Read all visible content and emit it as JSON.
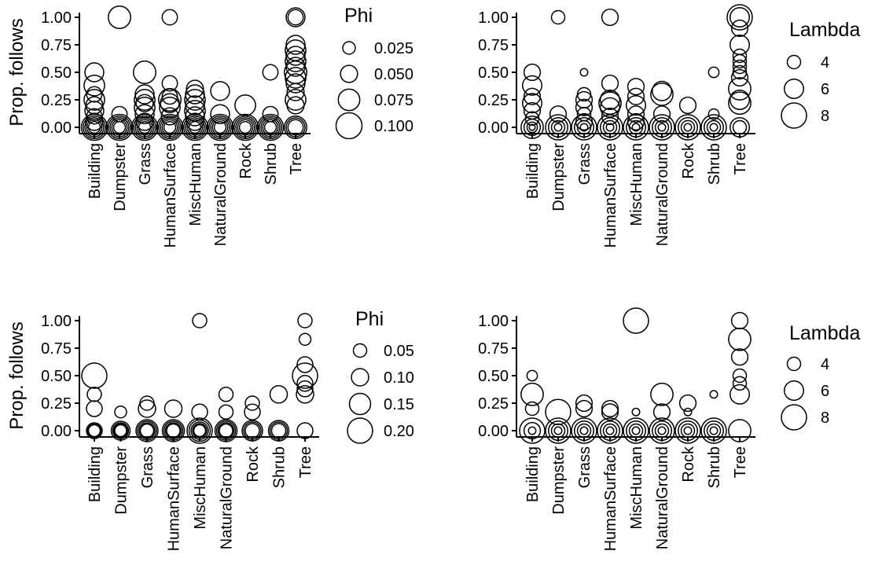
{
  "chart_data": [
    {
      "type": "scatter",
      "ylabel": "Prop. follows",
      "categories": [
        "Building",
        "Dumpster",
        "Grass",
        "HumanSurface",
        "MiscHuman",
        "NaturalGround",
        "Rock",
        "Shrub",
        "Tree"
      ],
      "ylim": [
        0,
        1
      ],
      "yticks": [
        "0.00",
        "0.25",
        "0.50",
        "0.75",
        "1.00"
      ],
      "legend": {
        "title": "Phi",
        "labels": [
          "0.025",
          "0.050",
          "0.075",
          "0.100"
        ],
        "values": [
          0.025,
          0.05,
          0.075,
          0.1
        ],
        "placement": "right"
      },
      "points": [
        [
          0,
          0,
          0.1
        ],
        [
          0,
          0,
          0.08
        ],
        [
          0,
          0,
          0.06
        ],
        [
          0,
          0,
          0.04
        ],
        [
          0,
          0,
          0.02
        ],
        [
          0,
          0.05,
          0.05
        ],
        [
          0,
          0.1,
          0.04
        ],
        [
          0,
          0.15,
          0.06
        ],
        [
          0,
          0.2,
          0.05
        ],
        [
          0,
          0.25,
          0.07
        ],
        [
          0,
          0.3,
          0.04
        ],
        [
          0,
          0.38,
          0.07
        ],
        [
          0,
          0.5,
          0.06
        ],
        [
          1,
          0,
          0.1
        ],
        [
          1,
          0,
          0.08
        ],
        [
          1,
          0,
          0.06
        ],
        [
          1,
          0,
          0.04
        ],
        [
          1,
          0,
          0.02
        ],
        [
          1,
          0.12,
          0.04
        ],
        [
          1,
          1.0,
          0.08
        ],
        [
          2,
          0,
          0.1
        ],
        [
          2,
          0,
          0.08
        ],
        [
          2,
          0,
          0.06
        ],
        [
          2,
          0,
          0.04
        ],
        [
          2,
          0,
          0.02
        ],
        [
          2,
          0.05,
          0.05
        ],
        [
          2,
          0.12,
          0.06
        ],
        [
          2,
          0.18,
          0.07
        ],
        [
          2,
          0.22,
          0.05
        ],
        [
          2,
          0.25,
          0.07
        ],
        [
          2,
          0.3,
          0.06
        ],
        [
          2,
          0.5,
          0.08
        ],
        [
          3,
          0,
          0.1
        ],
        [
          3,
          0,
          0.08
        ],
        [
          3,
          0,
          0.06
        ],
        [
          3,
          0,
          0.04
        ],
        [
          3,
          0,
          0.02
        ],
        [
          3,
          0.1,
          0.05
        ],
        [
          3,
          0.18,
          0.07
        ],
        [
          3,
          0.22,
          0.06
        ],
        [
          3,
          0.25,
          0.08
        ],
        [
          3,
          0.28,
          0.04
        ],
        [
          3,
          0.4,
          0.04
        ],
        [
          3,
          1.0,
          0.04
        ],
        [
          4,
          0,
          0.1
        ],
        [
          4,
          0,
          0.08
        ],
        [
          4,
          0,
          0.06
        ],
        [
          4,
          0,
          0.04
        ],
        [
          4,
          0,
          0.02
        ],
        [
          4,
          0.05,
          0.05
        ],
        [
          4,
          0.1,
          0.06
        ],
        [
          4,
          0.15,
          0.07
        ],
        [
          4,
          0.2,
          0.06
        ],
        [
          4,
          0.25,
          0.07
        ],
        [
          4,
          0.3,
          0.06
        ],
        [
          4,
          0.35,
          0.05
        ],
        [
          5,
          0,
          0.1
        ],
        [
          5,
          0,
          0.08
        ],
        [
          5,
          0,
          0.06
        ],
        [
          5,
          0,
          0.04
        ],
        [
          5,
          0,
          0.02
        ],
        [
          5,
          0.12,
          0.06
        ],
        [
          5,
          0.33,
          0.06
        ],
        [
          6,
          0,
          0.1
        ],
        [
          6,
          0,
          0.08
        ],
        [
          6,
          0,
          0.06
        ],
        [
          6,
          0,
          0.04
        ],
        [
          6,
          0,
          0.02
        ],
        [
          6,
          0.2,
          0.07
        ],
        [
          7,
          0,
          0.1
        ],
        [
          7,
          0,
          0.08
        ],
        [
          7,
          0,
          0.06
        ],
        [
          7,
          0,
          0.04
        ],
        [
          7,
          0,
          0.02
        ],
        [
          7,
          0.12,
          0.04
        ],
        [
          7,
          0.5,
          0.04
        ],
        [
          8,
          0,
          0.08
        ],
        [
          8,
          0,
          0.06
        ],
        [
          8,
          0,
          0.04
        ],
        [
          8,
          0.2,
          0.05
        ],
        [
          8,
          0.25,
          0.07
        ],
        [
          8,
          0.32,
          0.05
        ],
        [
          8,
          0.4,
          0.06
        ],
        [
          8,
          0.45,
          0.07
        ],
        [
          8,
          0.5,
          0.08
        ],
        [
          8,
          0.55,
          0.06
        ],
        [
          8,
          0.6,
          0.07
        ],
        [
          8,
          0.65,
          0.06
        ],
        [
          8,
          0.7,
          0.07
        ],
        [
          8,
          0.75,
          0.06
        ],
        [
          8,
          1.0,
          0.04
        ],
        [
          8,
          1.0,
          0.06
        ]
      ]
    },
    {
      "type": "scatter",
      "ylabel": "",
      "categories": [
        "Building",
        "Dumpster",
        "Grass",
        "HumanSurface",
        "MiscHuman",
        "NaturalGround",
        "Rock",
        "Shrub",
        "Tree"
      ],
      "ylim": [
        0,
        1
      ],
      "yticks": [
        "0.00",
        "0.25",
        "0.50",
        "0.75",
        "1.00"
      ],
      "legend": {
        "title": "Lambda",
        "labels": [
          "4",
          "6",
          "8"
        ],
        "values": [
          4,
          6,
          8
        ],
        "placement": "right"
      },
      "points": [
        [
          0,
          0,
          7
        ],
        [
          0,
          0,
          5
        ],
        [
          0,
          0,
          3
        ],
        [
          0,
          0,
          1.5
        ],
        [
          0,
          0.08,
          4
        ],
        [
          0,
          0.15,
          5
        ],
        [
          0,
          0.22,
          6
        ],
        [
          0,
          0.28,
          5
        ],
        [
          0,
          0.38,
          6
        ],
        [
          0,
          0.5,
          5
        ],
        [
          1,
          0,
          8
        ],
        [
          1,
          0,
          6
        ],
        [
          1,
          0,
          4
        ],
        [
          1,
          0,
          2
        ],
        [
          1,
          0.12,
          5
        ],
        [
          1,
          1.0,
          4
        ],
        [
          2,
          0,
          8
        ],
        [
          2,
          0,
          6
        ],
        [
          2,
          0,
          4
        ],
        [
          2,
          0,
          2
        ],
        [
          2,
          0.05,
          5
        ],
        [
          2,
          0.12,
          4
        ],
        [
          2,
          0.18,
          5
        ],
        [
          2,
          0.25,
          5
        ],
        [
          2,
          0.3,
          4
        ],
        [
          2,
          0.5,
          2
        ],
        [
          3,
          0,
          8
        ],
        [
          3,
          0,
          6
        ],
        [
          3,
          0,
          4
        ],
        [
          3,
          0,
          2
        ],
        [
          3,
          0.1,
          5
        ],
        [
          3,
          0.18,
          6
        ],
        [
          3,
          0.22,
          7
        ],
        [
          3,
          0.25,
          6
        ],
        [
          3,
          0.4,
          5
        ],
        [
          3,
          1.0,
          5
        ],
        [
          4,
          0,
          8
        ],
        [
          4,
          0,
          6
        ],
        [
          4,
          0,
          4
        ],
        [
          4,
          0,
          2
        ],
        [
          4,
          0.05,
          5
        ],
        [
          4,
          0.12,
          5
        ],
        [
          4,
          0.2,
          6
        ],
        [
          4,
          0.28,
          5
        ],
        [
          4,
          0.37,
          5
        ],
        [
          5,
          0,
          8
        ],
        [
          5,
          0,
          6
        ],
        [
          5,
          0,
          4
        ],
        [
          5,
          0,
          2
        ],
        [
          5,
          0.12,
          5
        ],
        [
          5,
          0.3,
          7
        ],
        [
          5,
          0.33,
          6
        ],
        [
          6,
          0,
          8
        ],
        [
          6,
          0,
          6
        ],
        [
          6,
          0,
          4
        ],
        [
          6,
          0,
          2
        ],
        [
          6,
          0.2,
          5
        ],
        [
          7,
          0,
          8
        ],
        [
          7,
          0,
          6
        ],
        [
          7,
          0,
          4
        ],
        [
          7,
          0,
          2
        ],
        [
          7,
          0.12,
          3
        ],
        [
          7,
          0.5,
          3
        ],
        [
          8,
          0,
          6
        ],
        [
          8,
          0,
          4
        ],
        [
          8,
          0.22,
          7
        ],
        [
          8,
          0.25,
          6
        ],
        [
          8,
          0.35,
          7
        ],
        [
          8,
          0.45,
          5
        ],
        [
          8,
          0.5,
          4
        ],
        [
          8,
          0.55,
          4
        ],
        [
          8,
          0.6,
          4
        ],
        [
          8,
          0.65,
          4
        ],
        [
          8,
          0.75,
          6
        ],
        [
          8,
          0.9,
          5
        ],
        [
          8,
          1.0,
          6
        ],
        [
          8,
          1.0,
          8
        ]
      ]
    },
    {
      "type": "scatter",
      "ylabel": "Prop. follows",
      "categories": [
        "Building",
        "Dumpster",
        "Grass",
        "HumanSurface",
        "MiscHuman",
        "NaturalGround",
        "Rock",
        "Shrub",
        "Tree"
      ],
      "ylim": [
        0,
        1
      ],
      "yticks": [
        "0.00",
        "0.25",
        "0.50",
        "0.75",
        "1.00"
      ],
      "legend": {
        "title": "Phi",
        "labels": [
          "0.05",
          "0.10",
          "0.15",
          "0.20"
        ],
        "values": [
          0.05,
          0.1,
          0.15,
          0.2
        ],
        "placement": "right"
      },
      "points": [
        [
          0,
          0,
          0.08
        ],
        [
          0,
          0,
          0.05
        ],
        [
          0,
          0,
          0.03
        ],
        [
          0,
          0.2,
          0.08
        ],
        [
          0,
          0.33,
          0.06
        ],
        [
          0,
          0.5,
          0.2
        ],
        [
          1,
          0,
          0.12
        ],
        [
          1,
          0,
          0.08
        ],
        [
          1,
          0,
          0.05
        ],
        [
          1,
          0,
          0.03
        ],
        [
          1,
          0.17,
          0.03
        ],
        [
          2,
          0,
          0.16
        ],
        [
          2,
          0,
          0.12
        ],
        [
          2,
          0,
          0.08
        ],
        [
          2,
          0,
          0.05
        ],
        [
          2,
          0.2,
          0.1
        ],
        [
          2,
          0.25,
          0.06
        ],
        [
          3,
          0,
          0.16
        ],
        [
          3,
          0,
          0.12
        ],
        [
          3,
          0,
          0.08
        ],
        [
          3,
          0,
          0.05
        ],
        [
          3,
          0.2,
          0.1
        ],
        [
          4,
          0,
          0.2
        ],
        [
          4,
          0,
          0.15
        ],
        [
          4,
          0,
          0.1
        ],
        [
          4,
          0,
          0.06
        ],
        [
          4,
          0,
          0.03
        ],
        [
          4,
          0.17,
          0.08
        ],
        [
          4,
          1.0,
          0.06
        ],
        [
          5,
          0,
          0.16
        ],
        [
          5,
          0,
          0.12
        ],
        [
          5,
          0,
          0.08
        ],
        [
          5,
          0,
          0.05
        ],
        [
          5,
          0.17,
          0.06
        ],
        [
          5,
          0.33,
          0.06
        ],
        [
          6,
          0,
          0.14
        ],
        [
          6,
          0,
          0.1
        ],
        [
          6,
          0,
          0.06
        ],
        [
          6,
          0.17,
          0.08
        ],
        [
          6,
          0.25,
          0.06
        ],
        [
          7,
          0,
          0.14
        ],
        [
          7,
          0,
          0.1
        ],
        [
          7,
          0,
          0.06
        ],
        [
          7,
          0.33,
          0.1
        ],
        [
          8,
          0,
          0.08
        ],
        [
          8,
          0.33,
          0.1
        ],
        [
          8,
          0.38,
          0.08
        ],
        [
          8,
          0.43,
          0.08
        ],
        [
          8,
          0.5,
          0.2
        ],
        [
          8,
          0.6,
          0.08
        ],
        [
          8,
          0.83,
          0.03
        ],
        [
          8,
          1.0,
          0.06
        ]
      ]
    },
    {
      "type": "scatter",
      "ylabel": "",
      "categories": [
        "Building",
        "Dumpster",
        "Grass",
        "HumanSurface",
        "MiscHuman",
        "NaturalGround",
        "Rock",
        "Shrub",
        "Tree"
      ],
      "ylim": [
        0,
        1
      ],
      "yticks": [
        "0.00",
        "0.25",
        "0.50",
        "0.75",
        "1.00"
      ],
      "legend": {
        "title": "Lambda",
        "labels": [
          "4",
          "6",
          "8"
        ],
        "values": [
          4,
          6,
          8
        ],
        "placement": "right"
      },
      "points": [
        [
          0,
          0,
          8
        ],
        [
          0,
          0,
          5
        ],
        [
          0,
          0,
          2
        ],
        [
          0,
          0.2,
          4
        ],
        [
          0,
          0.33,
          7
        ],
        [
          0,
          0.5,
          3
        ],
        [
          1,
          0,
          8
        ],
        [
          1,
          0,
          6
        ],
        [
          1,
          0,
          4
        ],
        [
          1,
          0,
          2
        ],
        [
          1,
          0.17,
          8
        ],
        [
          2,
          0,
          8
        ],
        [
          2,
          0,
          6
        ],
        [
          2,
          0,
          4
        ],
        [
          2,
          0,
          2
        ],
        [
          2,
          0.2,
          5
        ],
        [
          2,
          0.25,
          5
        ],
        [
          3,
          0,
          8
        ],
        [
          3,
          0,
          6
        ],
        [
          3,
          0,
          4
        ],
        [
          3,
          0,
          2
        ],
        [
          3,
          0.17,
          5
        ],
        [
          3,
          0.2,
          5
        ],
        [
          4,
          0,
          8
        ],
        [
          4,
          0,
          6
        ],
        [
          4,
          0,
          4
        ],
        [
          4,
          0,
          2
        ],
        [
          4,
          0.17,
          2
        ],
        [
          4,
          1.0,
          8
        ],
        [
          5,
          0,
          8
        ],
        [
          5,
          0,
          6
        ],
        [
          5,
          0,
          4
        ],
        [
          5,
          0,
          2
        ],
        [
          5,
          0.17,
          5
        ],
        [
          5,
          0.33,
          7
        ],
        [
          6,
          0,
          8
        ],
        [
          6,
          0,
          6
        ],
        [
          6,
          0,
          4
        ],
        [
          6,
          0,
          2
        ],
        [
          6,
          0.17,
          2
        ],
        [
          6,
          0.25,
          5
        ],
        [
          7,
          0,
          8
        ],
        [
          7,
          0,
          6
        ],
        [
          7,
          0,
          4
        ],
        [
          7,
          0,
          2
        ],
        [
          7,
          0.33,
          2
        ],
        [
          8,
          0,
          7
        ],
        [
          8,
          0.33,
          6
        ],
        [
          8,
          0.43,
          4
        ],
        [
          8,
          0.5,
          4
        ],
        [
          8,
          0.67,
          5
        ],
        [
          8,
          0.83,
          7
        ],
        [
          8,
          1.0,
          5
        ]
      ]
    }
  ]
}
